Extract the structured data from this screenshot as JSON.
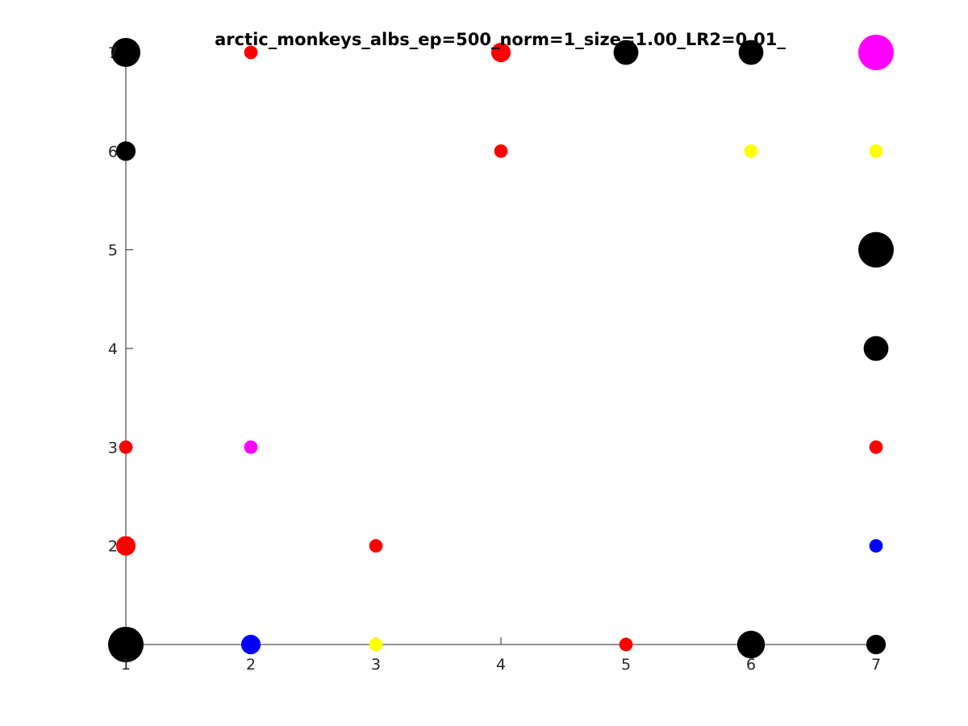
{
  "chart_data": {
    "type": "scatter",
    "title": "arctic_monkeys_albs_ep=500_norm=1_size=1.00_LR2=0.01_",
    "xlabel": "",
    "ylabel": "",
    "xlim": [
      1,
      7
    ],
    "ylim": [
      1,
      7
    ],
    "x_ticks": [
      "1",
      "2",
      "3",
      "4",
      "5",
      "6",
      "7"
    ],
    "y_ticks": [
      "2",
      "3",
      "4",
      "5",
      "6",
      "7"
    ],
    "grid": false,
    "legend": "none",
    "colors": {
      "black": "#000000",
      "red": "#ff0000",
      "blue": "#0000ff",
      "yellow": "#ffff00",
      "magenta": "#ff00ff"
    },
    "points": [
      {
        "x": 1,
        "y": 1,
        "color": "black",
        "size": 1.0
      },
      {
        "x": 2,
        "y": 1,
        "color": "blue",
        "size": 0.55
      },
      {
        "x": 3,
        "y": 1,
        "color": "yellow",
        "size": 0.38
      },
      {
        "x": 5,
        "y": 1,
        "color": "red",
        "size": 0.38
      },
      {
        "x": 6,
        "y": 1,
        "color": "black",
        "size": 0.78
      },
      {
        "x": 7,
        "y": 1,
        "color": "black",
        "size": 0.55
      },
      {
        "x": 1,
        "y": 2,
        "color": "red",
        "size": 0.55
      },
      {
        "x": 3,
        "y": 2,
        "color": "red",
        "size": 0.38
      },
      {
        "x": 7,
        "y": 2,
        "color": "blue",
        "size": 0.38
      },
      {
        "x": 1,
        "y": 3,
        "color": "red",
        "size": 0.38
      },
      {
        "x": 2,
        "y": 3,
        "color": "magenta",
        "size": 0.38
      },
      {
        "x": 7,
        "y": 3,
        "color": "red",
        "size": 0.38
      },
      {
        "x": 7,
        "y": 4,
        "color": "black",
        "size": 0.7
      },
      {
        "x": 7,
        "y": 5,
        "color": "black",
        "size": 1.0
      },
      {
        "x": 1,
        "y": 6,
        "color": "black",
        "size": 0.55
      },
      {
        "x": 4,
        "y": 6,
        "color": "red",
        "size": 0.38
      },
      {
        "x": 6,
        "y": 6,
        "color": "yellow",
        "size": 0.38
      },
      {
        "x": 7,
        "y": 6,
        "color": "yellow",
        "size": 0.38
      },
      {
        "x": 1,
        "y": 7,
        "color": "black",
        "size": 0.82
      },
      {
        "x": 2,
        "y": 7,
        "color": "red",
        "size": 0.38
      },
      {
        "x": 4,
        "y": 7,
        "color": "red",
        "size": 0.55
      },
      {
        "x": 5,
        "y": 7,
        "color": "black",
        "size": 0.7
      },
      {
        "x": 6,
        "y": 7,
        "color": "black",
        "size": 0.7
      },
      {
        "x": 7,
        "y": 7,
        "color": "magenta",
        "size": 1.0
      }
    ]
  }
}
